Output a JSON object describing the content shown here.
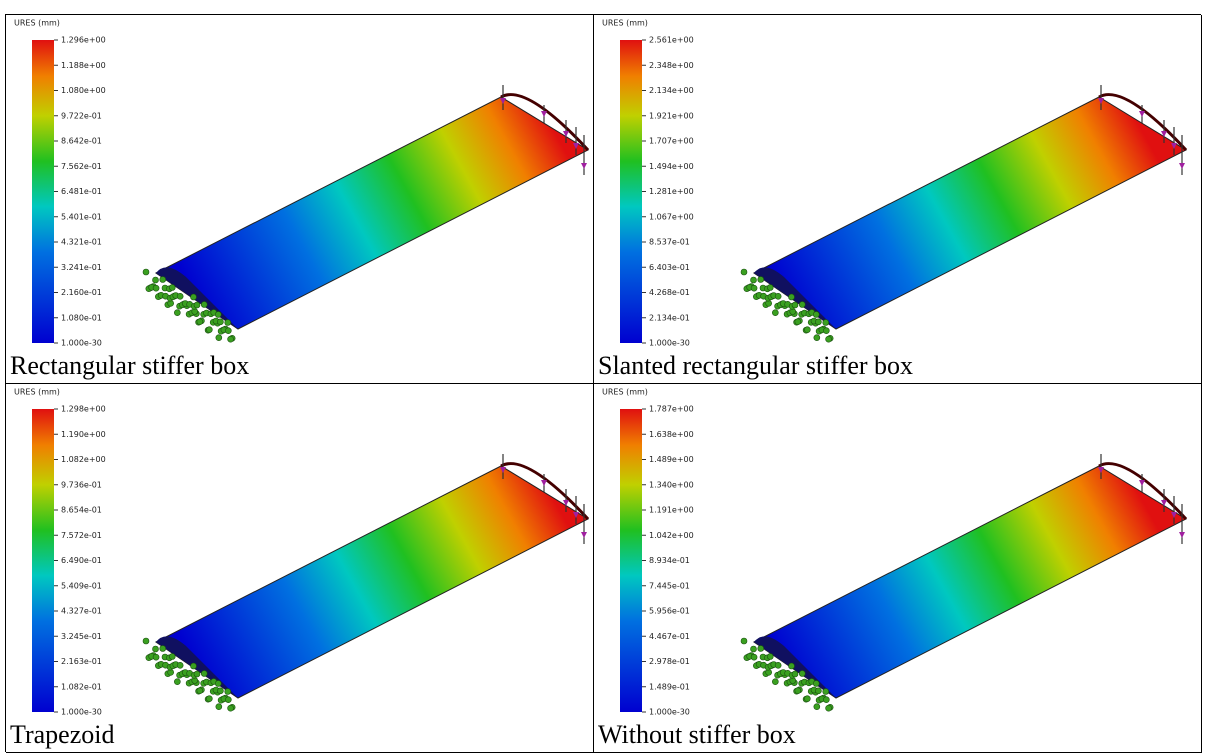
{
  "panels": [
    {
      "title": "URES (mm)",
      "legend_labels": [
        "1.296e+00",
        "1.188e+00",
        "1.080e+00",
        "9.722e-01",
        "8.642e-01",
        "7.562e-01",
        "6.481e-01",
        "5.401e-01",
        "4.321e-01",
        "3.241e-01",
        "2.160e-01",
        "1.080e-01",
        "1.000e-30"
      ],
      "caption": "Rectangular stiffer box"
    },
    {
      "title": "URES (mm)",
      "legend_labels": [
        "2.561e+00",
        "2.348e+00",
        "2.134e+00",
        "1.921e+00",
        "1.707e+00",
        "1.494e+00",
        "1.281e+00",
        "1.067e+00",
        "8.537e-01",
        "6.403e-01",
        "4.268e-01",
        "2.134e-01",
        "1.000e-30"
      ],
      "caption": "Slanted rectangular stiffer box"
    },
    {
      "title": "URES (mm)",
      "legend_labels": [
        "1.298e+00",
        "1.190e+00",
        "1.082e+00",
        "9.736e-01",
        "8.654e-01",
        "7.572e-01",
        "6.490e-01",
        "5.409e-01",
        "4.327e-01",
        "3.245e-01",
        "2.163e-01",
        "1.082e-01",
        "1.000e-30"
      ],
      "caption": "Trapezoid"
    },
    {
      "title": "URES (mm)",
      "legend_labels": [
        "1.787e+00",
        "1.638e+00",
        "1.489e+00",
        "1.340e+00",
        "1.191e+00",
        "1.042e+00",
        "8.934e-01",
        "7.445e-01",
        "5.956e-01",
        "4.467e-01",
        "2.978e-01",
        "1.489e-01",
        "1.000e-30"
      ],
      "caption": "Without stiffer box"
    }
  ]
}
